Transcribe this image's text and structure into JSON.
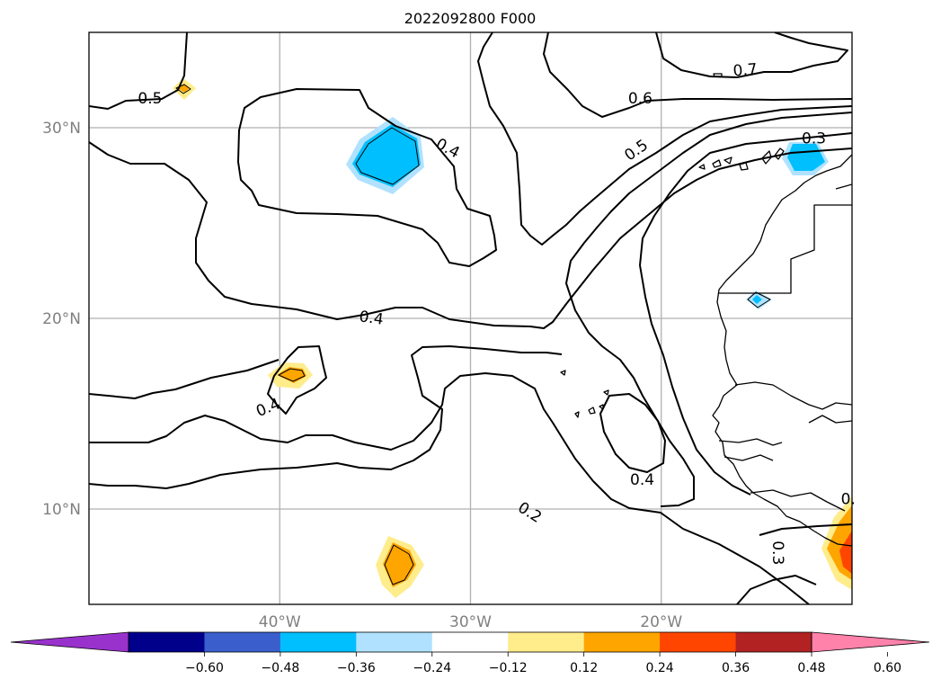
{
  "chart_data": {
    "type": "contour",
    "title": "2022092800 F000",
    "map": {
      "lon_range": [
        -50,
        -10
      ],
      "lat_range": [
        5,
        35
      ],
      "lon_ticks": [
        {
          "value": -40,
          "label": "40°W"
        },
        {
          "value": -30,
          "label": "30°W"
        },
        {
          "value": -20,
          "label": "20°W"
        }
      ],
      "lat_ticks": [
        {
          "value": 10,
          "label": "10°N"
        },
        {
          "value": 20,
          "label": "20°N"
        },
        {
          "value": 30,
          "label": "30°N"
        }
      ],
      "grid": true
    },
    "colorbar": {
      "orientation": "horizontal",
      "extend": "both",
      "levels": [
        -0.72,
        -0.6,
        -0.48,
        -0.36,
        -0.24,
        -0.12,
        0.12,
        0.24,
        0.36,
        0.48,
        0.6,
        0.72
      ],
      "colors": [
        "#9932cc",
        "#00008b",
        "#3a5fcd",
        "#00bfff",
        "#b0e2ff",
        "#ffffff",
        "#ffec8b",
        "#ffa500",
        "#ff4500",
        "#b22222",
        "#ff82ab"
      ],
      "tick_labels": [
        "−0.60",
        "−0.48",
        "−0.36",
        "−0.24",
        "−0.12",
        "0.12",
        "0.24",
        "0.36",
        "0.48",
        "0.60"
      ]
    },
    "contour_labels": [
      {
        "text": "0.5",
        "lon": -46.8,
        "lat": 31.5,
        "rot": 0
      },
      {
        "text": "0.4",
        "lon": -31.2,
        "lat": 28.9,
        "rot": 28
      },
      {
        "text": "0.6",
        "lon": -21.1,
        "lat": 31.5,
        "rot": 0
      },
      {
        "text": "0.7",
        "lon": -15.6,
        "lat": 33.0,
        "rot": -5
      },
      {
        "text": "0.5",
        "lon": -21.3,
        "lat": 28.8,
        "rot": -35
      },
      {
        "text": "0.3",
        "lon": -12.0,
        "lat": 29.4,
        "rot": 0
      },
      {
        "text": "0.4",
        "lon": -35.2,
        "lat": 20.0,
        "rot": 8
      },
      {
        "text": "0.4",
        "lon": -40.6,
        "lat": 15.3,
        "rot": -22
      },
      {
        "text": "0.4",
        "lon": -21.0,
        "lat": 11.5,
        "rot": 0
      },
      {
        "text": "0.2",
        "lon": -26.9,
        "lat": 9.8,
        "rot": 32
      },
      {
        "text": "0.3",
        "lon": -13.9,
        "lat": 7.7,
        "rot": 90
      },
      {
        "text": "0.",
        "lon": -10.2,
        "lat": 10.5,
        "rot": 0
      }
    ]
  }
}
